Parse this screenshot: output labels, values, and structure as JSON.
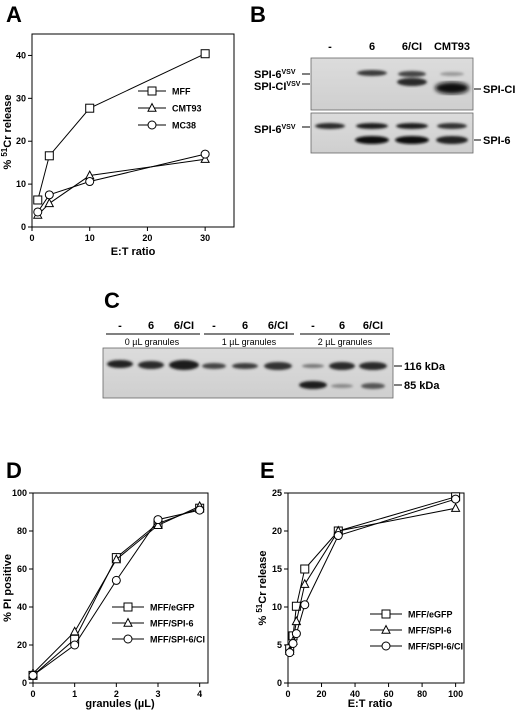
{
  "panels": {
    "a": {
      "letter": "A"
    },
    "b": {
      "letter": "B"
    },
    "c": {
      "letter": "C"
    },
    "d": {
      "letter": "D"
    },
    "e": {
      "letter": "E"
    }
  },
  "chart_data": [
    {
      "panel": "A",
      "type": "line",
      "xlabel": "E:T ratio",
      "ylabel": "% 51Cr release",
      "xlim": [
        0,
        35
      ],
      "ylim": [
        0,
        45
      ],
      "xticks": [
        0,
        10,
        20,
        30
      ],
      "yticks": [
        0,
        10,
        20,
        30,
        40
      ],
      "legend": "right",
      "series": [
        {
          "name": "MFF",
          "marker": "square",
          "x": [
            1,
            3,
            10,
            30
          ],
          "y": [
            6.3,
            16.6,
            27.7,
            40.4
          ]
        },
        {
          "name": "CMT93",
          "marker": "triangle",
          "x": [
            1,
            3,
            10,
            30
          ],
          "y": [
            2.8,
            5.5,
            12.0,
            15.8
          ]
        },
        {
          "name": "MC38",
          "marker": "circle",
          "x": [
            1,
            3,
            10,
            30
          ],
          "y": [
            3.5,
            7.5,
            10.6,
            17.0
          ]
        }
      ]
    },
    {
      "panel": "D",
      "type": "line",
      "xlabel": "granules (µL)",
      "ylabel": "% PI positive",
      "xlim": [
        0,
        4.2
      ],
      "ylim": [
        0,
        100
      ],
      "xticks": [
        0,
        1,
        2,
        3,
        4
      ],
      "yticks": [
        0,
        20,
        40,
        60,
        80,
        100
      ],
      "legend": "bottom-right",
      "series": [
        {
          "name": "MFF/eGFP",
          "marker": "square",
          "x": [
            0,
            1,
            2,
            3,
            4
          ],
          "y": [
            4,
            23,
            66,
            84,
            92
          ]
        },
        {
          "name": "MFF/SPI-6",
          "marker": "triangle",
          "x": [
            0,
            1,
            2,
            3,
            4
          ],
          "y": [
            5,
            27,
            65,
            83,
            93
          ]
        },
        {
          "name": "MFF/SPI-6/CI",
          "marker": "circle",
          "x": [
            0,
            1,
            2,
            3,
            4
          ],
          "y": [
            4,
            20,
            54,
            86,
            91
          ]
        }
      ]
    },
    {
      "panel": "E",
      "type": "line",
      "xlabel": "E:T ratio",
      "ylabel": "% 51Cr release",
      "xlim": [
        0,
        105
      ],
      "ylim": [
        0,
        25
      ],
      "xticks": [
        0,
        20,
        40,
        60,
        80,
        100
      ],
      "yticks": [
        0,
        5,
        10,
        15,
        20,
        25
      ],
      "legend": "bottom-right",
      "series": [
        {
          "name": "MFF/eGFP",
          "marker": "square",
          "x": [
            1,
            3,
            5,
            10,
            30,
            100
          ],
          "y": [
            4.5,
            6.2,
            10.1,
            15.0,
            20.0,
            24.5
          ]
        },
        {
          "name": "MFF/SPI-6",
          "marker": "triangle",
          "x": [
            1,
            3,
            5,
            10,
            30,
            100
          ],
          "y": [
            4.2,
            5.5,
            8.1,
            13.0,
            20.0,
            23.0
          ]
        },
        {
          "name": "MFF/SPI-6/CI",
          "marker": "circle",
          "x": [
            1,
            3,
            5,
            10,
            30,
            100
          ],
          "y": [
            4.0,
            5.2,
            6.5,
            10.3,
            19.4,
            24.2
          ]
        }
      ]
    }
  ],
  "blotB": {
    "lanes": [
      "-",
      "6",
      "6/CI",
      "CMT93"
    ],
    "left_top1": "SPI-6",
    "left_top1_sup": "VSV",
    "left_top2": "SPI-CI",
    "left_top2_sup": "VSV",
    "left_bottom": "SPI-6",
    "left_bottom_sup": "VSV",
    "right_top": "SPI-CI",
    "right_bottom": "SPI-6"
  },
  "blotC": {
    "lanes": [
      "-",
      "6",
      "6/CI",
      "-",
      "6",
      "6/CI",
      "-",
      "6",
      "6/CI"
    ],
    "groups": [
      "0 µL granules",
      "1 µL granules",
      "2 µL granules"
    ],
    "markers": [
      "116 kDa",
      "85 kDa"
    ]
  }
}
